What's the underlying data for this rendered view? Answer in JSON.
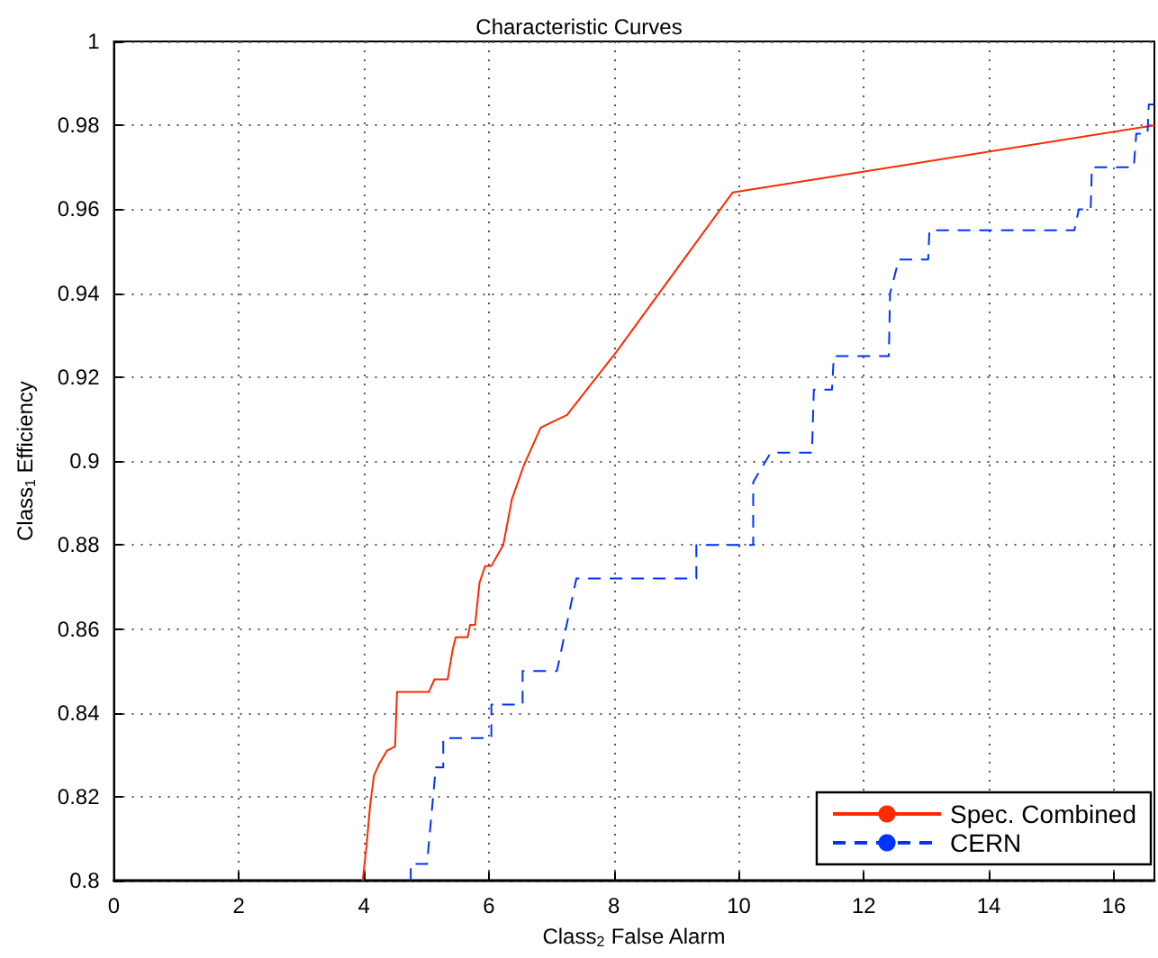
{
  "chart_data": {
    "type": "line",
    "title": "Characteristic Curves",
    "xlabel": "Class$_{2}$ False Alarm",
    "ylabel": "Class$_{1}$ Efficiency",
    "xlim": [
      0,
      16.65
    ],
    "xticks": [
      0,
      2,
      4,
      6,
      8,
      10,
      12,
      14,
      16
    ],
    "ylim": [
      0.8,
      1
    ],
    "yticks": [
      0.8,
      0.82,
      0.84,
      0.86,
      0.88,
      0.9,
      0.92,
      0.94,
      0.96,
      0.98,
      1
    ],
    "grid": true,
    "legend": "bottom right",
    "series": [
      {
        "name": "Spec. Combined",
        "color": "#ff2a00",
        "line_style": "solid",
        "x": [
          3.98,
          4.04,
          4.1,
          4.16,
          4.25,
          4.37,
          4.5,
          4.53,
          5.04,
          5.13,
          5.34,
          5.42,
          5.47,
          5.66,
          5.7,
          5.78,
          5.85,
          5.94,
          6.04,
          6.23,
          6.37,
          6.56,
          6.83,
          7.25,
          8.04,
          9.9,
          16.65
        ],
        "values": [
          0.8,
          0.808,
          0.818,
          0.825,
          0.828,
          0.831,
          0.832,
          0.845,
          0.845,
          0.848,
          0.848,
          0.855,
          0.858,
          0.858,
          0.861,
          0.861,
          0.871,
          0.875,
          0.875,
          0.88,
          0.891,
          0.899,
          0.908,
          0.911,
          0.926,
          0.964,
          0.98
        ]
      },
      {
        "name": "CERN",
        "color": "#0033ff",
        "line_style": "dashed",
        "x": [
          4.75,
          4.75,
          5.01,
          5.15,
          5.27,
          5.27,
          6.04,
          6.04,
          6.54,
          6.54,
          7.09,
          7.4,
          9.32,
          9.32,
          10.23,
          10.23,
          10.51,
          11.17,
          11.2,
          11.49,
          11.52,
          12.4,
          12.42,
          12.56,
          13.03,
          13.05,
          15.37,
          15.44,
          15.63,
          15.65,
          16.32,
          16.36,
          16.54,
          16.56,
          16.64
        ],
        "values": [
          0.8,
          0.804,
          0.804,
          0.827,
          0.827,
          0.834,
          0.834,
          0.842,
          0.842,
          0.85,
          0.85,
          0.872,
          0.872,
          0.88,
          0.88,
          0.895,
          0.902,
          0.902,
          0.917,
          0.917,
          0.925,
          0.925,
          0.94,
          0.948,
          0.948,
          0.955,
          0.955,
          0.96,
          0.96,
          0.97,
          0.97,
          0.978,
          0.978,
          0.985,
          0.985
        ]
      }
    ]
  }
}
